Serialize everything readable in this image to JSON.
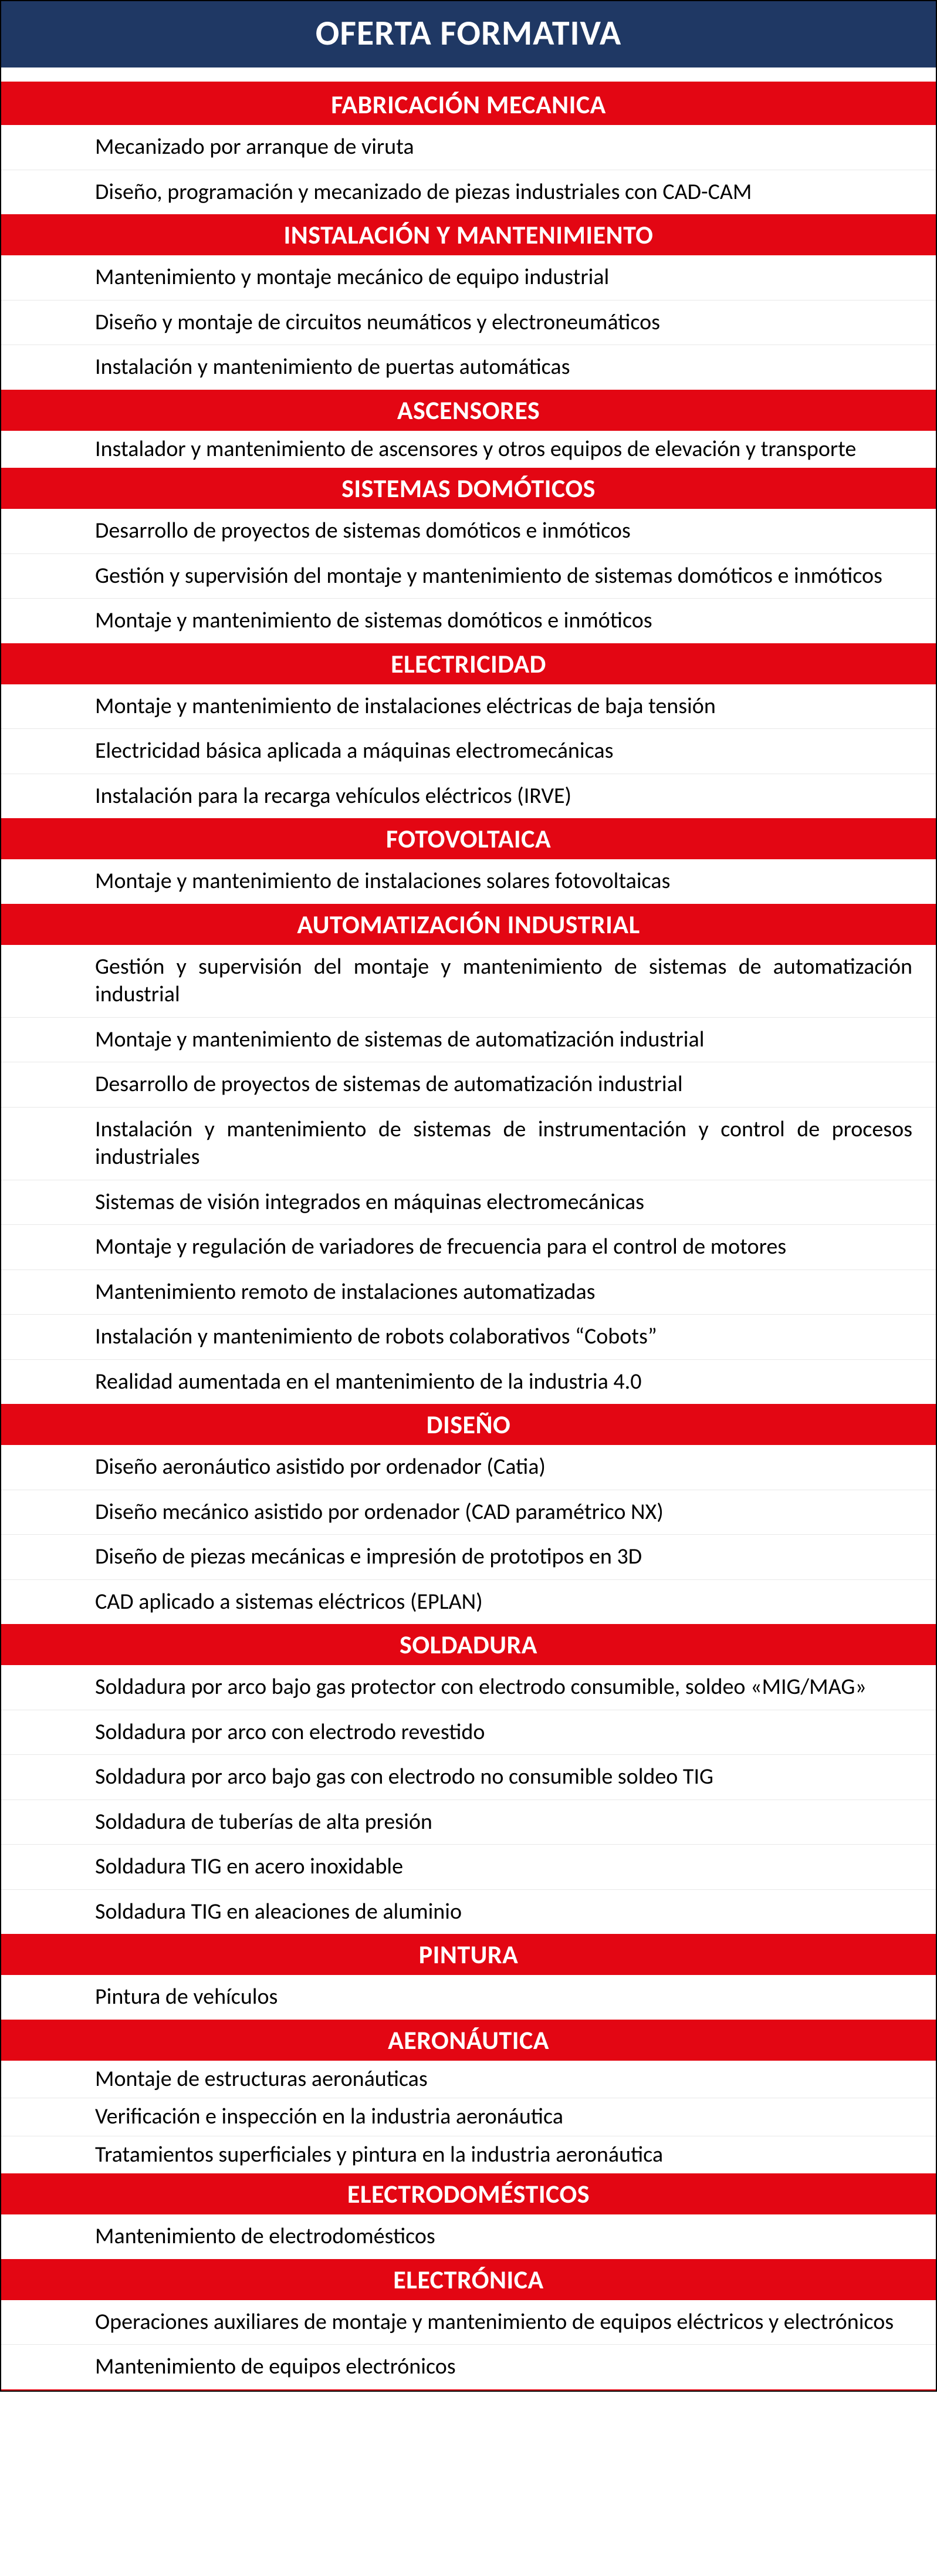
{
  "main_title": "OFERTA FORMATIVA",
  "sections": [
    {
      "title": "FABRICACIÓN MECANICA",
      "tight": false,
      "courses": [
        {
          "text": "Mecanizado por arranque de viruta",
          "justify": false
        },
        {
          "text": "Diseño, programación y mecanizado de piezas industriales con CAD-CAM",
          "justify": false
        }
      ]
    },
    {
      "title": "INSTALACIÓN Y MANTENIMIENTO",
      "tight": false,
      "courses": [
        {
          "text": "Mantenimiento y montaje mecánico de equipo industrial",
          "justify": false
        },
        {
          "text": "Diseño y montaje de circuitos neumáticos y electroneumáticos",
          "justify": false
        },
        {
          "text": "Instalación y mantenimiento de puertas automáticas",
          "justify": false
        }
      ]
    },
    {
      "title": "ASCENSORES",
      "tight": true,
      "courses": [
        {
          "text": "Instalador y mantenimiento de ascensores y otros equipos de elevación y transporte",
          "justify": false
        }
      ]
    },
    {
      "title": "SISTEMAS DOMÓTICOS",
      "tight": false,
      "courses": [
        {
          "text": "Desarrollo de proyectos de sistemas domóticos e inmóticos",
          "justify": false
        },
        {
          "text": "Gestión y supervisión del montaje y mantenimiento de sistemas domóticos e inmóticos",
          "justify": false
        },
        {
          "text": "Montaje y mantenimiento de sistemas domóticos e inmóticos",
          "justify": false
        }
      ]
    },
    {
      "title": "ELECTRICIDAD",
      "tight": false,
      "courses": [
        {
          "text": "Montaje y mantenimiento de instalaciones eléctricas de baja tensión",
          "justify": false
        },
        {
          "text": "Electricidad básica aplicada a máquinas electromecánicas",
          "justify": false
        },
        {
          "text": "Instalación para la recarga vehículos eléctricos (IRVE)",
          "justify": false
        }
      ]
    },
    {
      "title": "FOTOVOLTAICA",
      "tight": false,
      "courses": [
        {
          "text": "Montaje y mantenimiento de instalaciones solares fotovoltaicas",
          "justify": false
        }
      ]
    },
    {
      "title": "AUTOMATIZACIÓN INDUSTRIAL",
      "tight": false,
      "courses": [
        {
          "text": "Gestión y supervisión del montaje y mantenimiento de sistemas de automatización industrial",
          "justify": true
        },
        {
          "text": "Montaje y mantenimiento de sistemas de automatización industrial",
          "justify": false
        },
        {
          "text": "Desarrollo de proyectos de sistemas de automatización industrial",
          "justify": false
        },
        {
          "text": "Instalación y mantenimiento de sistemas de instrumentación y control de procesos industriales",
          "justify": true
        },
        {
          "text": "Sistemas de visión integrados en máquinas electromecánicas",
          "justify": false
        },
        {
          "text": "Montaje y regulación de variadores de frecuencia para el control de motores",
          "justify": false
        },
        {
          "text": "Mantenimiento remoto de instalaciones automatizadas",
          "justify": false
        },
        {
          "text": "Instalación y mantenimiento de robots colaborativos “Cobots”",
          "justify": false
        },
        {
          "text": "Realidad aumentada en el mantenimiento de la industria 4.0",
          "justify": false
        }
      ]
    },
    {
      "title": "DISEÑO",
      "tight": false,
      "courses": [
        {
          "text": "Diseño aeronáutico asistido por ordenador (Catia)",
          "justify": false
        },
        {
          "text": "Diseño mecánico asistido por ordenador (CAD paramétrico NX)",
          "justify": false
        },
        {
          "text": "Diseño de piezas mecánicas e impresión de prototipos en 3D",
          "justify": false
        },
        {
          "text": "CAD aplicado a sistemas eléctricos (EPLAN)",
          "justify": false
        }
      ]
    },
    {
      "title": "SOLDADURA",
      "tight": false,
      "courses": [
        {
          "text": "Soldadura por arco bajo gas protector con electrodo consumible, soldeo «MIG/MAG»",
          "justify": false
        },
        {
          "text": "Soldadura por arco con electrodo revestido",
          "justify": false
        },
        {
          "text": "Soldadura por arco bajo gas con electrodo no consumible soldeo TIG",
          "justify": false
        },
        {
          "text": "Soldadura de tuberías de alta presión",
          "justify": false
        },
        {
          "text": "Soldadura TIG en acero inoxidable",
          "justify": false
        },
        {
          "text": "Soldadura TIG en aleaciones de aluminio",
          "justify": false
        }
      ]
    },
    {
      "title": "PINTURA",
      "tight": false,
      "courses": [
        {
          "text": "Pintura de vehículos",
          "justify": false
        }
      ]
    },
    {
      "title": "AERONÁUTICA",
      "tight": true,
      "courses": [
        {
          "text": "Montaje de estructuras aeronáuticas",
          "justify": false
        },
        {
          "text": "Verificación e inspección en la industria aeronáutica",
          "justify": false
        },
        {
          "text": "Tratamientos superficiales y pintura en la industria aeronáutica",
          "justify": false
        }
      ]
    },
    {
      "title": "ELECTRODOMÉSTICOS",
      "tight": false,
      "courses": [
        {
          "text": "Mantenimiento de electrodomésticos",
          "justify": false
        }
      ]
    },
    {
      "title": "ELECTRÓNICA",
      "tight": false,
      "courses": [
        {
          "text": "Operaciones auxiliares de montaje y mantenimiento de equipos eléctricos y electrónicos",
          "justify": true
        },
        {
          "text": "Mantenimiento de equipos electrónicos",
          "justify": false
        }
      ]
    }
  ]
}
